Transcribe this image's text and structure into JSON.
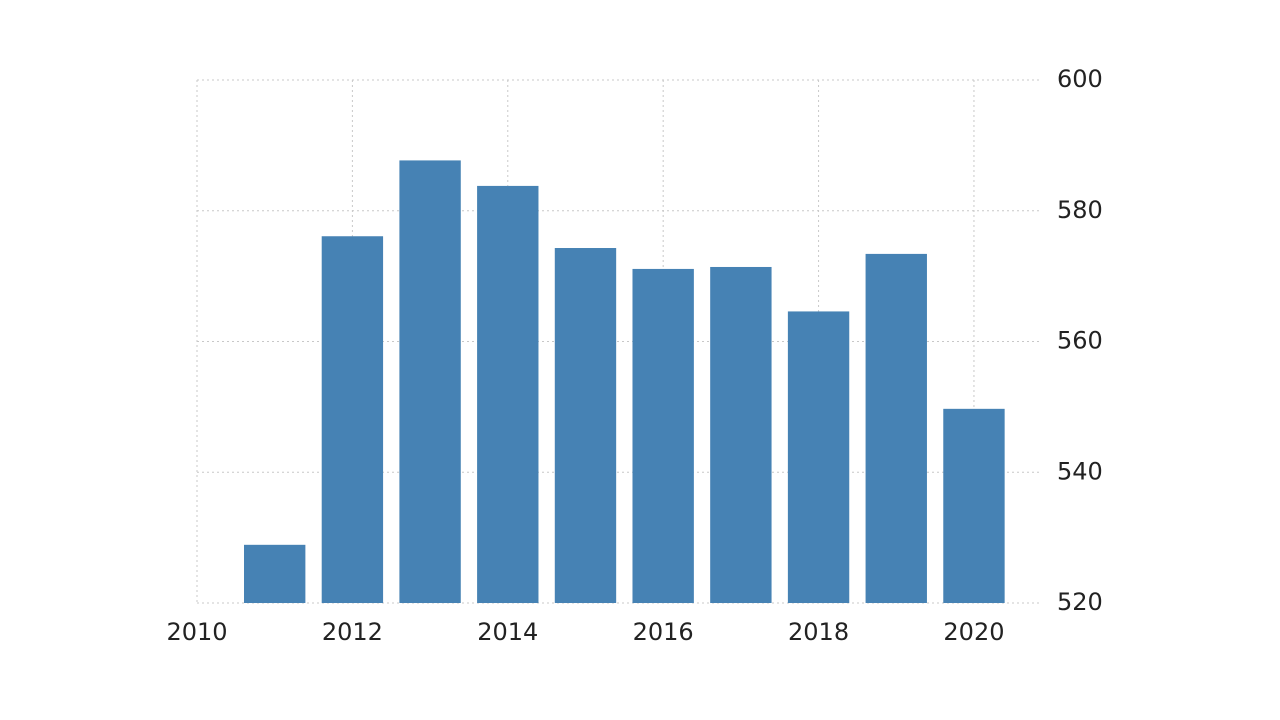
{
  "chart_data": {
    "type": "bar",
    "x": [
      2011,
      2012,
      2013,
      2014,
      2015,
      2016,
      2017,
      2018,
      2019,
      2020
    ],
    "values": [
      528.9,
      576.1,
      587.7,
      583.8,
      574.3,
      571.1,
      571.4,
      564.6,
      573.4,
      549.7
    ],
    "color": "#4682b4",
    "xlim": [
      2010,
      2020.85
    ],
    "xticks": [
      2010,
      2012,
      2014,
      2016,
      2018,
      2020
    ],
    "ylim": [
      520,
      600
    ],
    "yticks": [
      520,
      540,
      560,
      580,
      600
    ],
    "grid": true
  }
}
